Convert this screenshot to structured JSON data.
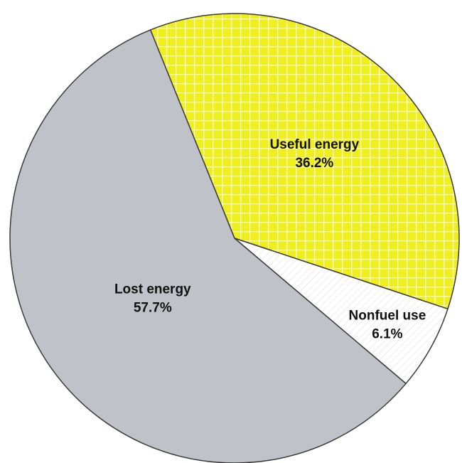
{
  "chart_data": {
    "type": "pie",
    "title": "",
    "slices": [
      {
        "label": "Useful energy",
        "value": 36.2,
        "value_label": "36.2%",
        "color": "#f0ef1e",
        "pattern": "grid"
      },
      {
        "label": "Nonfuel use",
        "value": 6.1,
        "value_label": "6.1%",
        "color": "#ffffff",
        "pattern": "hatch"
      },
      {
        "label": "Lost energy",
        "value": 57.7,
        "value_label": "57.7%",
        "color": "#bfc3c9",
        "pattern": "none"
      }
    ],
    "start_angle_deg": -22,
    "direction": "clockwise",
    "legend": "none"
  }
}
